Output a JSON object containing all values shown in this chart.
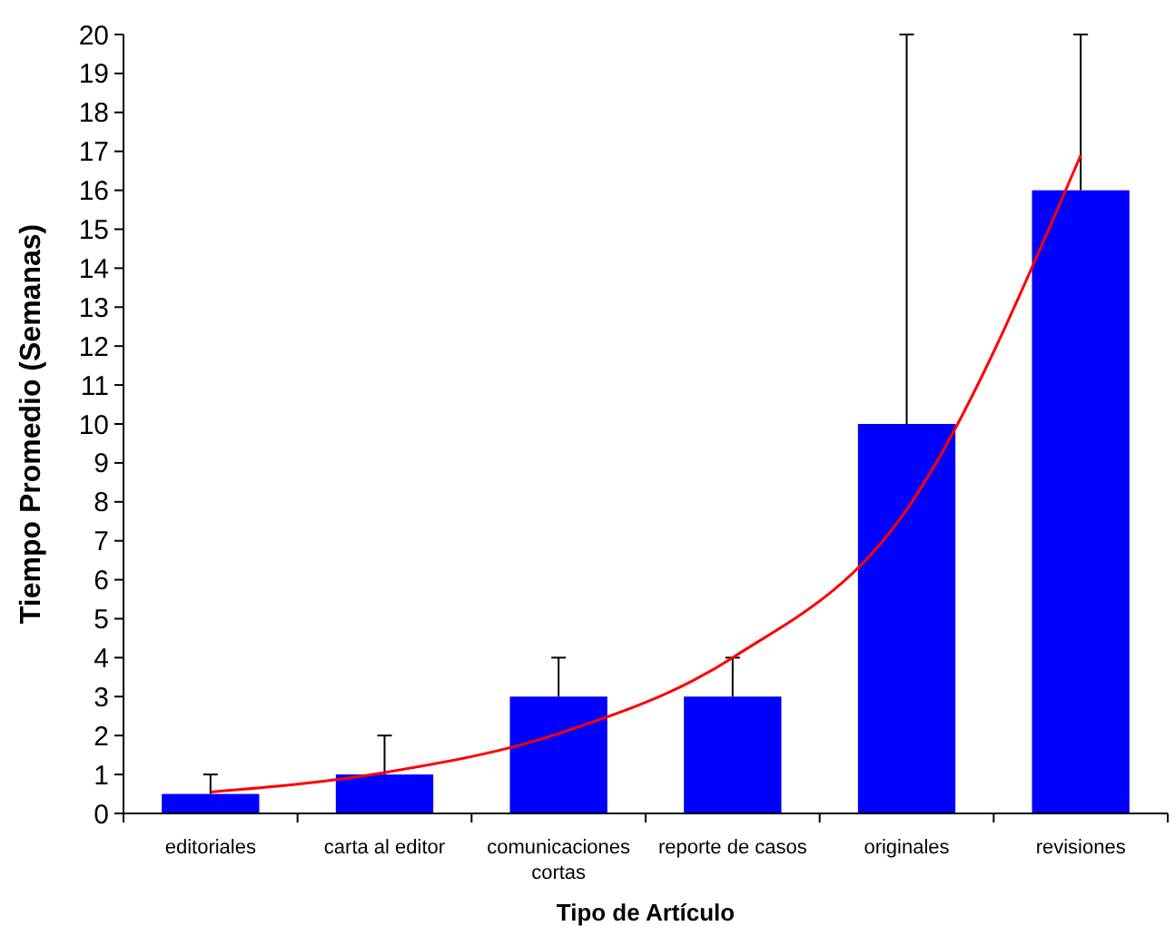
{
  "chart_data": {
    "type": "bar",
    "xlabel": "Tipo de Artículo",
    "ylabel": "Tiempo Promedio (Semanas)",
    "categories": [
      "editoriales",
      "carta al editor",
      "comunicaciones cortas",
      "reporte de casos",
      "originales",
      "revisiones"
    ],
    "ylim": [
      0,
      20
    ],
    "yticks": [
      0,
      1,
      2,
      3,
      4,
      5,
      6,
      7,
      8,
      9,
      10,
      11,
      12,
      13,
      14,
      15,
      16,
      17,
      18,
      19,
      20
    ],
    "grid": false,
    "series": [
      {
        "color": "#0000ff",
        "values": [
          0.5,
          1,
          3,
          3,
          10,
          16
        ],
        "errors": [
          [
            0.5,
            1
          ],
          [
            1,
            2
          ],
          [
            3,
            4
          ],
          [
            3,
            4
          ],
          [
            10,
            20
          ],
          [
            16,
            20
          ]
        ]
      },
      {
        "type": "line",
        "color": "#ff0000",
        "values": [
          0.55,
          1.05,
          2.05,
          4.0,
          7.8,
          16.9
        ],
        "marker": "none",
        "line_style": "solid"
      }
    ]
  }
}
